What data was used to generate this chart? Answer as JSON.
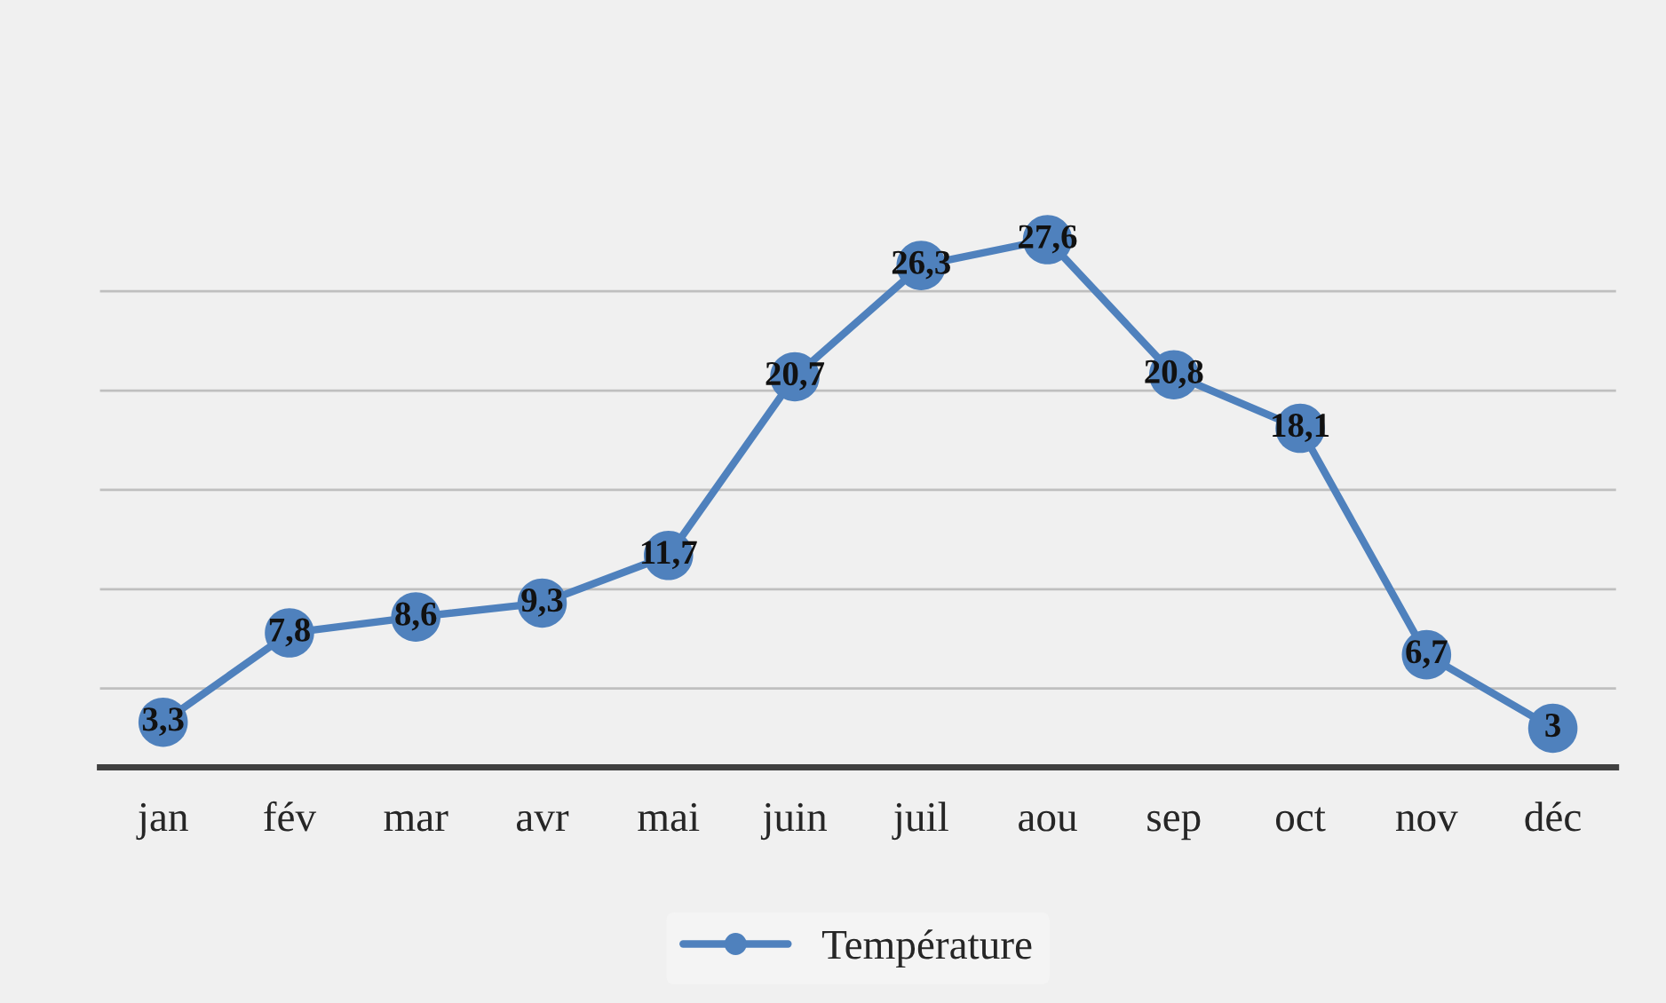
{
  "chart_data": {
    "type": "line",
    "categories": [
      "jan",
      "fév",
      "mar",
      "avr",
      "mai",
      "juin",
      "juil",
      "aou",
      "sep",
      "oct",
      "nov",
      "déc"
    ],
    "series": [
      {
        "name": "Température",
        "color": "#4f81bd",
        "values": [
          3.3,
          7.8,
          8.6,
          9.3,
          11.7,
          20.7,
          26.3,
          27.6,
          20.8,
          18.1,
          6.7,
          3
        ],
        "value_labels": [
          "3,3",
          "7,8",
          "8,6",
          "9,3",
          "11,7",
          "20,7",
          "26,3",
          "27,6",
          "20,8",
          "18,1",
          "6,7",
          "3"
        ]
      }
    ],
    "grid": "y",
    "legend": "bottom",
    "marker": "circle",
    "line_style": "solid"
  }
}
